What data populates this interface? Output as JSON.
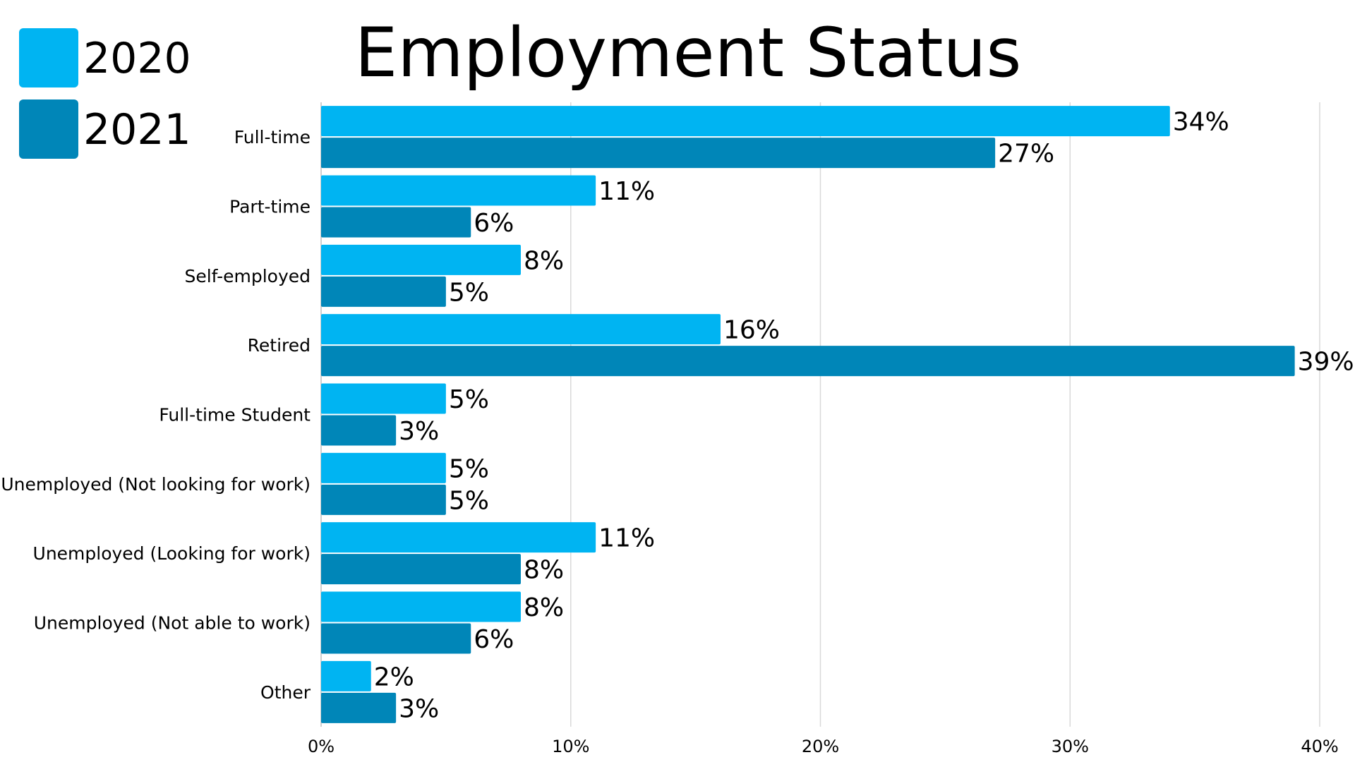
{
  "chart_data": {
    "type": "bar",
    "orientation": "horizontal",
    "title": "Employment Status",
    "categories": [
      "Full-time",
      "Part-time",
      "Self-employed",
      "Retired",
      "Full-time Student",
      "Unemployed (Not looking for work)",
      "Unemployed (Looking for work)",
      "Unemployed (Not able to work)",
      "Other"
    ],
    "series": [
      {
        "name": "2020",
        "color": "#00b4f2",
        "values": [
          34,
          11,
          8,
          16,
          5,
          5,
          11,
          8,
          2
        ],
        "labels": [
          "34%",
          "11%",
          "8%",
          "16%",
          "5%",
          "5%",
          "11%",
          "8%",
          "2%"
        ]
      },
      {
        "name": "2021",
        "color": "#0086b8",
        "values": [
          27,
          6,
          5,
          39,
          3,
          5,
          8,
          6,
          3
        ],
        "labels": [
          "27%",
          "6%",
          "5%",
          "39%",
          "3%",
          "5%",
          "8%",
          "6%",
          "3%"
        ]
      }
    ],
    "xlim": [
      0,
      40
    ],
    "xticks": [
      0,
      10,
      20,
      30,
      40
    ],
    "xtick_labels": [
      "0%",
      "10%",
      "20%",
      "30%",
      "40%"
    ],
    "xlabel": "",
    "ylabel": "",
    "grid": "vertical",
    "legend_position": "top-left"
  }
}
